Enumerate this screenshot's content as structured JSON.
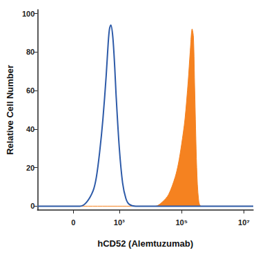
{
  "chart_data": {
    "type": "line",
    "x_label": "hCD52 (Alemtuzumab)",
    "y_label": "Relative Cell Number",
    "xlim": [
      -480,
      20000000
    ],
    "xticks": [
      0,
      {
        "value": 1000,
        "label": "10³"
      },
      {
        "value": 100000,
        "label": "10⁵"
      },
      {
        "value": 10000000,
        "label": "10⁷"
      }
    ],
    "ylim": [
      -2,
      102
    ],
    "yticks": [
      0,
      20,
      40,
      60,
      80,
      100
    ],
    "grid": false,
    "series": [
      {
        "type": "line",
        "color": "#2d5aa8",
        "x": [
          -480,
          34,
          76,
          137,
          178,
          230,
          295,
          379,
          441,
          484,
          534,
          619,
          716,
          789,
          1006,
          1282,
          1632,
          2079,
          3380,
          20000000
        ],
        "values": [
          0,
          0,
          2,
          8,
          15,
          28,
          45,
          68,
          85,
          92,
          94,
          88,
          72,
          58,
          30,
          12,
          4,
          1,
          0,
          0
        ]
      },
      {
        "type": "area",
        "color": "#f58220",
        "x": [
          -480,
          14480,
          23500,
          38200,
          62000,
          78900,
          100000,
          128200,
          163300,
          188800,
          218700,
          241000,
          265400,
          306800,
          354800,
          430400,
          20000000
        ],
        "values": [
          0,
          0,
          2,
          6,
          15,
          22,
          32,
          45,
          65,
          80,
          92,
          88,
          60,
          20,
          3,
          0,
          0
        ]
      }
    ]
  }
}
